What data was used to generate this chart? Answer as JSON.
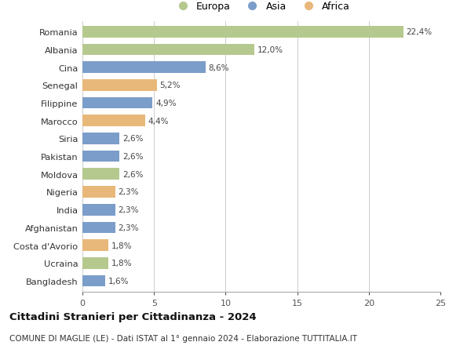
{
  "categories": [
    "Romania",
    "Albania",
    "Cina",
    "Senegal",
    "Filippine",
    "Marocco",
    "Siria",
    "Pakistan",
    "Moldova",
    "Nigeria",
    "India",
    "Afghanistan",
    "Costa d'Avorio",
    "Ucraina",
    "Bangladesh"
  ],
  "values": [
    22.4,
    12.0,
    8.6,
    5.2,
    4.9,
    4.4,
    2.6,
    2.6,
    2.6,
    2.3,
    2.3,
    2.3,
    1.8,
    1.8,
    1.6
  ],
  "continents": [
    "Europa",
    "Europa",
    "Asia",
    "Africa",
    "Asia",
    "Africa",
    "Asia",
    "Asia",
    "Europa",
    "Africa",
    "Asia",
    "Asia",
    "Africa",
    "Europa",
    "Asia"
  ],
  "colors": {
    "Europa": "#b5c98e",
    "Asia": "#7b9dc9",
    "Africa": "#e8b87a"
  },
  "title": "Cittadini Stranieri per Cittadinanza - 2024",
  "subtitle": "COMUNE DI MAGLIE (LE) - Dati ISTAT al 1° gennaio 2024 - Elaborazione TUTTITALIA.IT",
  "xlim": [
    0,
    25
  ],
  "xticks": [
    0,
    5,
    10,
    15,
    20,
    25
  ],
  "background_color": "#ffffff",
  "grid_color": "#cccccc",
  "bar_height": 0.65
}
